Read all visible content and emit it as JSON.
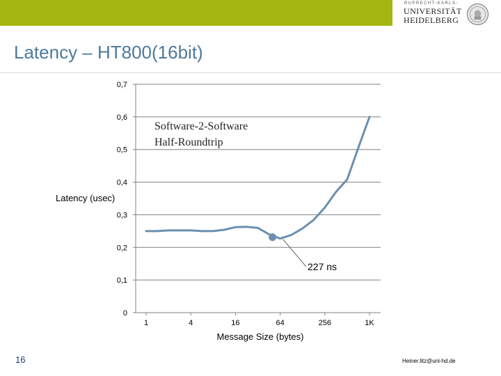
{
  "header": {
    "accent": "#a4b60f",
    "logo": {
      "top_line": "RUPRECHT-KARLS-",
      "line1": "UNIVERSITÄT",
      "line2": "HEIDELBERG",
      "seal_icon": "university-seal-icon"
    }
  },
  "slide": {
    "title": "Latency – HT800(16bit)",
    "title_color": "#4e7a9a",
    "number": "16"
  },
  "footer": {
    "email": "Heiner.litz@uni-hd.de"
  },
  "chart_data": {
    "type": "line",
    "xlabel": "Message Size (bytes)",
    "ylabel": "Latency (usec)",
    "categories": [
      "1",
      "4",
      "16",
      "64",
      "256",
      "1K"
    ],
    "ylim": [
      0,
      0.7
    ],
    "yticks": [
      "0",
      "0,1",
      "0,2",
      "0,3",
      "0,4",
      "0,5",
      "0,6",
      "0,7"
    ],
    "grid": true,
    "line_color": "#6b8fb0",
    "series": [
      {
        "x": [
          1,
          1.41,
          2,
          2.83,
          4,
          5.66,
          8,
          11.3,
          16,
          22.6,
          32,
          45.3,
          64,
          90.5,
          128,
          181,
          256,
          362,
          512,
          724,
          1024
        ],
        "y": [
          0.25,
          0.25,
          0.252,
          0.252,
          0.252,
          0.25,
          0.25,
          0.254,
          0.262,
          0.263,
          0.26,
          0.24,
          0.227,
          0.238,
          0.258,
          0.284,
          0.322,
          0.37,
          0.408,
          0.505,
          0.6
        ]
      }
    ],
    "annotations": [
      {
        "lines": [
          "Software-2-Software",
          "Half-Roundtrip"
        ]
      },
      {
        "text": "227 ns",
        "x": 64,
        "y": 0.227
      }
    ]
  }
}
